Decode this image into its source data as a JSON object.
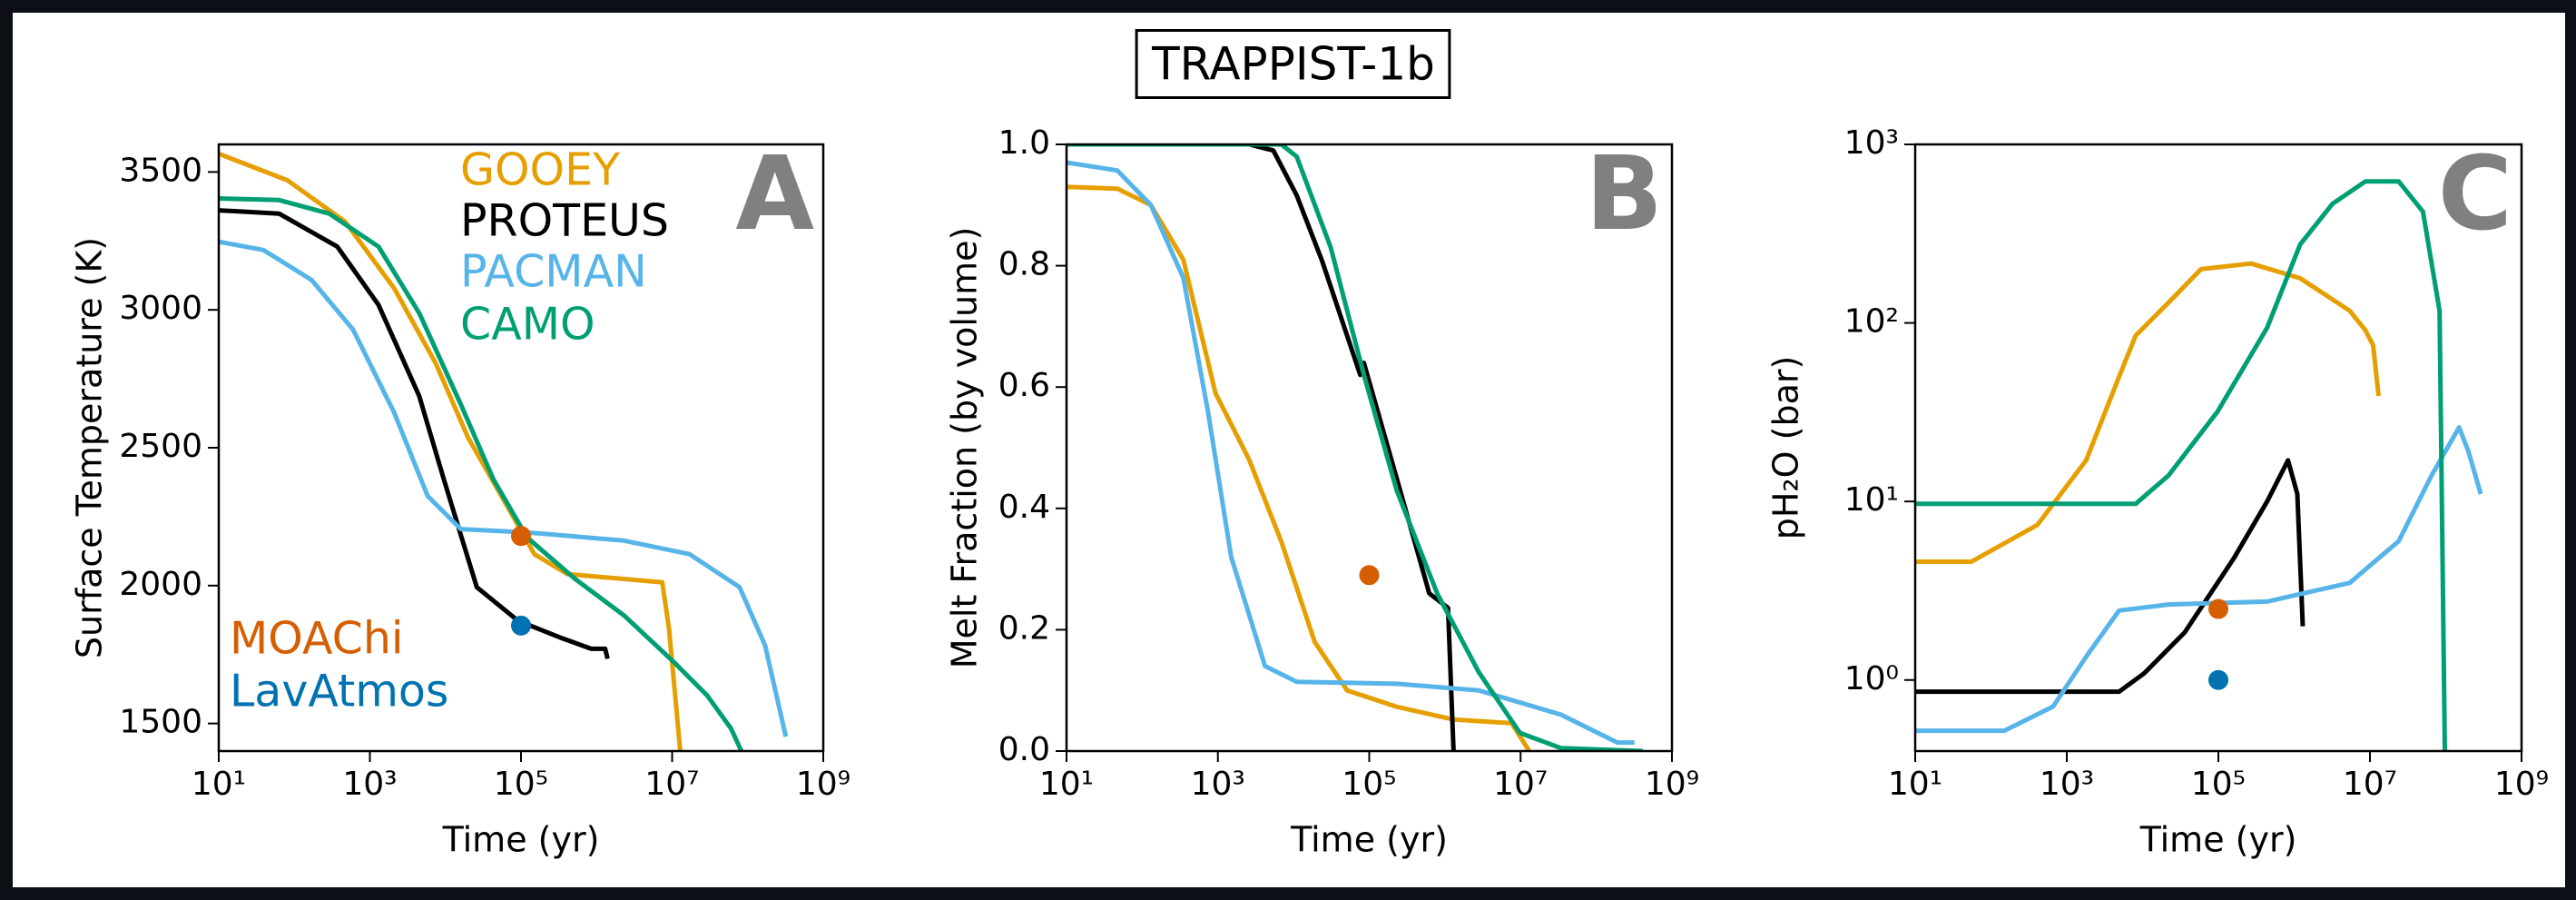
{
  "title": "TRAPPIST-1b",
  "chart_data": [
    {
      "type": "line",
      "annotation": "A",
      "xlabel": "Time (yr)",
      "ylabel": "Surface Temperature (K)",
      "xscale": "log",
      "yscale": "linear",
      "xlim": [
        10,
        1000000000.0
      ],
      "ylim": [
        1400,
        3600
      ],
      "xticks": [
        {
          "value": 10,
          "label": "10¹"
        },
        {
          "value": 1000,
          "label": "10³"
        },
        {
          "value": 100000,
          "label": "10⁵"
        },
        {
          "value": 10000000.0,
          "label": "10⁷"
        },
        {
          "value": 1000000000.0,
          "label": "10⁹"
        }
      ],
      "yticks": [
        1500,
        2000,
        2500,
        3000,
        3500
      ],
      "series": [
        {
          "name": "GOOEY",
          "color": "#E69F00",
          "x": [
            10,
            81,
            470,
            2100,
            7400,
            20000,
            55000,
            150000,
            410000,
            2300000.0,
            7400000.0,
            9100000.0,
            13000000.0
          ],
          "values": [
            3566,
            3470,
            3320,
            3078,
            2807,
            2536,
            2325,
            2114,
            2042,
            2024,
            2012,
            1843,
            1380
          ]
        },
        {
          "name": "PROTEUS",
          "color": "#000000",
          "x": [
            10,
            63,
            370,
            1300,
            4500,
            9500,
            26000,
            91000,
            320000,
            850000,
            1300000.0,
            1400000.0
          ],
          "values": [
            3361,
            3349,
            3229,
            3018,
            2687,
            2386,
            1994,
            1873,
            1813,
            1771,
            1771,
            1735
          ]
        },
        {
          "name": "PACMAN",
          "color": "#56B4E9",
          "x": [
            10,
            39,
            170,
            600,
            2100,
            5800,
            16000,
            120000,
            2300000.0,
            17000000.0,
            78000000.0,
            170000000.0,
            320000000.0
          ],
          "values": [
            3247,
            3217,
            3108,
            2928,
            2627,
            2325,
            2205,
            2193,
            2163,
            2114,
            1994,
            1783,
            1452
          ]
        },
        {
          "name": "CAMO",
          "color": "#009E73",
          "x": [
            10,
            63,
            290,
            1300,
            4500,
            16000,
            43000,
            120000,
            520000,
            2300000.0,
            10500000.0,
            29000000.0,
            60000000.0,
            85000000.0
          ],
          "values": [
            3404,
            3398,
            3349,
            3229,
            2988,
            2657,
            2386,
            2175,
            2024,
            1892,
            1723,
            1602,
            1482,
            1392
          ]
        },
        {
          "name": "MOAChi",
          "type": "scatter",
          "color": "#D55E00",
          "x": [
            100000
          ],
          "values": [
            2180
          ]
        },
        {
          "name": "LavAtmos",
          "type": "scatter",
          "color": "#0072B2",
          "x": [
            100000
          ],
          "values": [
            1855
          ]
        }
      ]
    },
    {
      "type": "line",
      "annotation": "B",
      "xlabel": "Time (yr)",
      "ylabel": "Melt Fraction (by volume)",
      "xscale": "log",
      "yscale": "linear",
      "xlim": [
        10,
        1000000000.0
      ],
      "ylim": [
        0,
        1
      ],
      "xticks": [
        {
          "value": 10,
          "label": "10¹"
        },
        {
          "value": 1000,
          "label": "10³"
        },
        {
          "value": 100000,
          "label": "10⁵"
        },
        {
          "value": 10000000.0,
          "label": "10⁷"
        },
        {
          "value": 1000000000.0,
          "label": "10⁹"
        }
      ],
      "yticks": [
        {
          "value": 0,
          "label": "0.0"
        },
        0.2,
        0.4,
        0.6,
        0.8,
        {
          "value": 1,
          "label": "1.0"
        }
      ],
      "series": [
        {
          "color": "#E69F00",
          "x": [
            10,
            47,
            130,
            350,
            930,
            2600,
            6900,
            19000,
            51000,
            230000,
            1300000.0,
            7600000.0,
            13000000.0
          ],
          "values": [
            0.93,
            0.927,
            0.9,
            0.81,
            0.59,
            0.48,
            0.345,
            0.18,
            0.1,
            0.073,
            0.052,
            0.046,
            0
          ]
        },
        {
          "color": "#000000",
          "x": [
            10,
            2600,
            5400,
            11000,
            24000,
            76000,
            85000,
            230000,
            620000,
            1100000.0,
            1300000.0
          ],
          "values": [
            1,
            1,
            0.99,
            0.916,
            0.807,
            0.62,
            0.64,
            0.45,
            0.26,
            0.236,
            0
          ]
        },
        {
          "color": "#56B4E9",
          "x": [
            10,
            47,
            130,
            350,
            740,
            1500,
            4200,
            11000,
            230000,
            2800000.0,
            34000000.0,
            190000000.0,
            320000000.0
          ],
          "values": [
            0.97,
            0.957,
            0.9,
            0.78,
            0.56,
            0.32,
            0.14,
            0.114,
            0.111,
            0.1,
            0.06,
            0.014,
            0.014
          ]
        },
        {
          "color": "#009E73",
          "x": [
            10,
            6900,
            11000,
            31000,
            85000,
            230000,
            790000,
            2800000.0,
            9800000.0,
            34000000.0,
            410000000.0
          ],
          "values": [
            1,
            1,
            0.98,
            0.83,
            0.62,
            0.43,
            0.26,
            0.13,
            0.03,
            0.005,
            0
          ]
        },
        {
          "type": "scatter",
          "color": "#D55E00",
          "x": [
            100000
          ],
          "values": [
            0.29
          ]
        }
      ]
    },
    {
      "type": "line",
      "annotation": "C",
      "xlabel": "Time (yr)",
      "ylabel": "pH₂O (bar)",
      "xscale": "log",
      "yscale": "log",
      "xlim": [
        10,
        1000000000.0
      ],
      "ylim": [
        0.4,
        1000
      ],
      "xticks": [
        {
          "value": 10,
          "label": "10¹"
        },
        {
          "value": 1000,
          "label": "10³"
        },
        {
          "value": 100000,
          "label": "10⁵"
        },
        {
          "value": 10000000.0,
          "label": "10⁷"
        },
        {
          "value": 1000000000.0,
          "label": "10⁹"
        }
      ],
      "yticks": [
        {
          "value": 1,
          "label": "10⁰"
        },
        {
          "value": 10,
          "label": "10¹"
        },
        {
          "value": 100,
          "label": "10²"
        },
        {
          "value": 1000,
          "label": "10³"
        }
      ],
      "series": [
        {
          "color": "#E69F00",
          "x": [
            10,
            55,
            410,
            1800,
            4900,
            8100,
            22000,
            59000,
            270000,
            1200000.0,
            5400000.0,
            8700000.0,
            11000000.0,
            13000000.0
          ],
          "values": [
            4.6,
            4.6,
            7.4,
            17,
            50,
            85,
            130,
            200,
            215,
            178,
            117,
            91,
            75,
            39
          ]
        },
        {
          "color": "#000000",
          "x": [
            10,
            4900,
            10500,
            36000,
            160000,
            440000,
            830000,
            1100000.0,
            1300000.0
          ],
          "values": [
            0.86,
            0.86,
            1.09,
            1.85,
            4.8,
            10,
            17,
            11,
            2
          ]
        },
        {
          "color": "#56B4E9",
          "x": [
            10,
            150,
            660,
            1800,
            4900,
            22000,
            440000,
            5400000.0,
            24000000.0,
            65000000.0,
            150000000.0,
            200000000.0,
            290000000.0
          ],
          "values": [
            0.52,
            0.52,
            0.71,
            1.35,
            2.45,
            2.65,
            2.75,
            3.5,
            6,
            14,
            26,
            19,
            11
          ]
        },
        {
          "color": "#009E73",
          "x": [
            10,
            8100,
            22000,
            98000,
            440000,
            1200000.0,
            3200000.0,
            8700000.0,
            24000000.0,
            50000000.0,
            83000000.0,
            98000000.0
          ],
          "values": [
            9.7,
            9.7,
            14,
            32,
            94,
            275,
            465,
            620,
            620,
            420,
            117,
            0.3
          ]
        },
        {
          "type": "scatter",
          "color": "#D55E00",
          "x": [
            100000
          ],
          "values": [
            2.5
          ]
        },
        {
          "type": "scatter",
          "color": "#0072B2",
          "x": [
            100000
          ],
          "values": [
            1
          ]
        }
      ]
    }
  ]
}
